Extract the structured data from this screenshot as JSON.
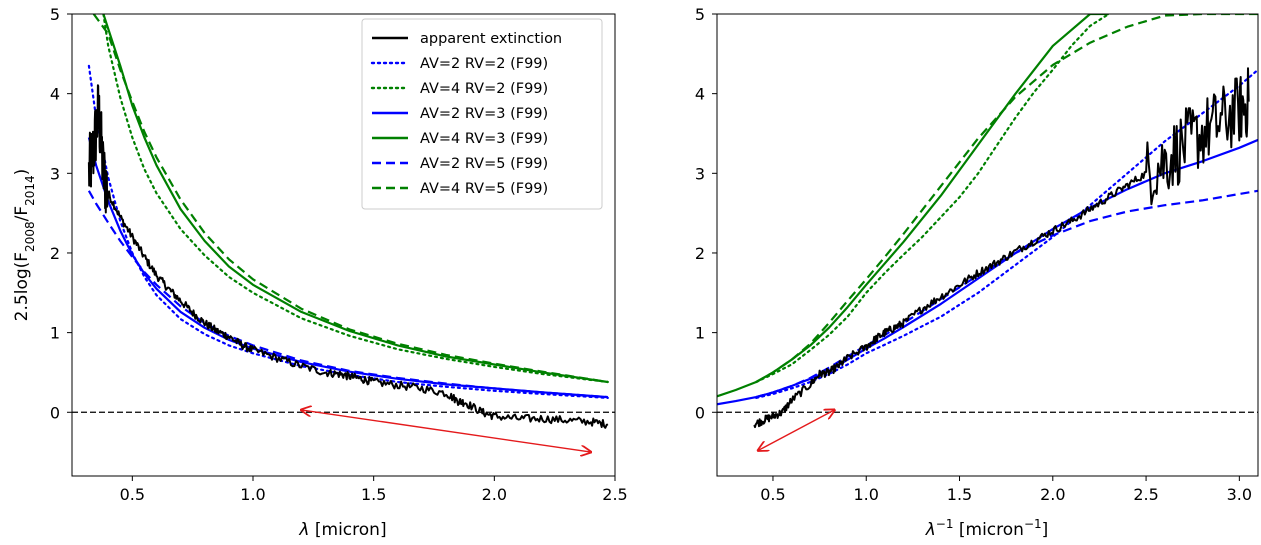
{
  "chart_data": [
    {
      "type": "line",
      "xlabel": "λ [micron]",
      "ylabel": "2.5log(F2008/F2014)",
      "ylabel_parts": {
        "pre": "2.5log(F",
        "sub1": "2008",
        "mid": "/F",
        "sub2": "2014",
        "post": ")"
      },
      "xlim": [
        0.25,
        2.5
      ],
      "ylim": [
        -0.8,
        5.0
      ],
      "xticks": [
        "0.5",
        "1.0",
        "1.5",
        "2.0",
        "2.5"
      ],
      "yticks": [
        "0",
        "1",
        "2",
        "3",
        "4",
        "5"
      ],
      "zero_line": 0,
      "arrow": {
        "from": [
          2.4,
          -0.5
        ],
        "to": [
          1.2,
          0.03
        ],
        "color": "#e41a1c"
      },
      "legend": {
        "position": "top-right",
        "entries": [
          {
            "label": "apparent extinction",
            "color": "#000000",
            "style": "solid"
          },
          {
            "label": "AV=2 RV=2 (F99)",
            "color": "#0000ff",
            "style": "dotted"
          },
          {
            "label": "AV=4 RV=2 (F99)",
            "color": "#008000",
            "style": "dotted"
          },
          {
            "label": "AV=2 RV=3 (F99)",
            "color": "#0000ff",
            "style": "solid"
          },
          {
            "label": "AV=4 RV=3 (F99)",
            "color": "#008000",
            "style": "solid"
          },
          {
            "label": "AV=2 RV=5 (F99)",
            "color": "#0000ff",
            "style": "dashed"
          },
          {
            "label": "AV=4 RV=5 (F99)",
            "color": "#008000",
            "style": "dashed"
          }
        ]
      },
      "series": [
        {
          "label": "AV=2 RV=2 (F99)",
          "color": "#0000ff",
          "style": "dotted",
          "x": [
            0.32,
            0.35,
            0.4,
            0.45,
            0.5,
            0.55,
            0.6,
            0.7,
            0.8,
            0.9,
            1.0,
            1.2,
            1.4,
            1.6,
            1.8,
            2.0,
            2.2,
            2.47
          ],
          "y": [
            4.35,
            3.7,
            2.95,
            2.4,
            2.0,
            1.7,
            1.47,
            1.17,
            0.98,
            0.84,
            0.74,
            0.58,
            0.47,
            0.38,
            0.32,
            0.27,
            0.23,
            0.18
          ]
        },
        {
          "label": "AV=4 RV=2 (F99)",
          "color": "#008000",
          "style": "dotted",
          "x": [
            0.38,
            0.4,
            0.45,
            0.5,
            0.55,
            0.6,
            0.7,
            0.8,
            0.9,
            1.0,
            1.2,
            1.4,
            1.6,
            1.8,
            2.0,
            2.2,
            2.47
          ],
          "y": [
            5.0,
            4.6,
            3.95,
            3.45,
            3.05,
            2.75,
            2.3,
            1.97,
            1.7,
            1.5,
            1.18,
            0.96,
            0.79,
            0.67,
            0.57,
            0.48,
            0.38
          ]
        },
        {
          "label": "AV=2 RV=3 (F99)",
          "color": "#0000ff",
          "style": "solid",
          "x": [
            0.32,
            0.35,
            0.4,
            0.45,
            0.5,
            0.55,
            0.6,
            0.7,
            0.8,
            0.9,
            1.0,
            1.2,
            1.4,
            1.6,
            1.8,
            2.0,
            2.2,
            2.47
          ],
          "y": [
            3.45,
            3.1,
            2.65,
            2.28,
            1.98,
            1.74,
            1.55,
            1.26,
            1.06,
            0.91,
            0.8,
            0.63,
            0.51,
            0.42,
            0.35,
            0.3,
            0.25,
            0.19
          ]
        },
        {
          "label": "AV=4 RV=3 (F99)",
          "color": "#008000",
          "style": "solid",
          "x": [
            0.38,
            0.45,
            0.5,
            0.55,
            0.6,
            0.7,
            0.8,
            0.9,
            1.0,
            1.2,
            1.4,
            1.6,
            1.8,
            2.0,
            2.2,
            2.47
          ],
          "y": [
            5.0,
            4.35,
            3.85,
            3.45,
            3.1,
            2.55,
            2.15,
            1.83,
            1.6,
            1.26,
            1.02,
            0.84,
            0.7,
            0.6,
            0.5,
            0.38
          ]
        },
        {
          "label": "AV=2 RV=5 (F99)",
          "color": "#0000ff",
          "style": "dashed",
          "x": [
            0.32,
            0.35,
            0.4,
            0.45,
            0.5,
            0.55,
            0.6,
            0.7,
            0.8,
            0.9,
            1.0,
            1.2,
            1.4,
            1.6,
            1.8,
            2.0,
            2.2,
            2.47
          ],
          "y": [
            2.78,
            2.62,
            2.38,
            2.15,
            1.95,
            1.76,
            1.6,
            1.33,
            1.12,
            0.96,
            0.84,
            0.65,
            0.52,
            0.43,
            0.36,
            0.3,
            0.25,
            0.19
          ]
        },
        {
          "label": "AV=4 RV=5 (F99)",
          "color": "#008000",
          "style": "dashed",
          "x": [
            0.34,
            0.4,
            0.45,
            0.5,
            0.55,
            0.6,
            0.7,
            0.8,
            0.9,
            1.0,
            1.2,
            1.4,
            1.6,
            1.8,
            2.0,
            2.2,
            2.47
          ],
          "y": [
            5.0,
            4.75,
            4.3,
            3.9,
            3.52,
            3.2,
            2.67,
            2.25,
            1.92,
            1.67,
            1.3,
            1.04,
            0.86,
            0.72,
            0.61,
            0.51,
            0.38
          ]
        },
        {
          "label": "apparent extinction",
          "color": "#000000",
          "style": "solid",
          "noisy": true,
          "x": [
            0.32,
            0.34,
            0.36,
            0.38,
            0.4,
            0.45,
            0.5,
            0.55,
            0.6,
            0.65,
            0.7,
            0.75,
            0.8,
            0.85,
            0.9,
            0.95,
            1.0,
            1.1,
            1.2,
            1.3,
            1.36,
            1.4,
            1.45,
            1.5,
            1.6,
            1.7,
            1.8,
            1.85,
            1.88,
            1.95,
            2.0,
            2.1,
            2.2,
            2.3,
            2.4,
            2.47
          ],
          "y": [
            3.0,
            3.3,
            3.8,
            3.0,
            2.75,
            2.45,
            2.2,
            1.95,
            1.72,
            1.55,
            1.4,
            1.25,
            1.12,
            1.02,
            0.95,
            0.85,
            0.78,
            0.68,
            0.58,
            0.5,
            0.48,
            0.45,
            0.42,
            0.38,
            0.34,
            0.3,
            0.24,
            0.14,
            0.12,
            0.0,
            -0.05,
            -0.08,
            -0.08,
            -0.1,
            -0.12,
            -0.15
          ]
        }
      ]
    },
    {
      "type": "line",
      "xlabel": "λ⁻¹ [micron⁻¹]",
      "xlim": [
        0.2,
        3.1
      ],
      "ylim": [
        -0.8,
        5.0
      ],
      "xticks": [
        "0.5",
        "1.0",
        "1.5",
        "2.0",
        "2.5",
        "3.0"
      ],
      "yticks": [
        "0",
        "1",
        "2",
        "3",
        "4",
        "5"
      ],
      "zero_line": 0,
      "arrow": {
        "from": [
          0.42,
          -0.48
        ],
        "to": [
          0.83,
          0.03
        ],
        "color": "#e41a1c"
      },
      "series": [
        {
          "label": "AV=2 RV=2 (F99)",
          "color": "#0000ff",
          "style": "dotted",
          "x": [
            0.41,
            0.5,
            0.6,
            0.7,
            0.8,
            0.9,
            1.0,
            1.1,
            1.2,
            1.3,
            1.4,
            1.5,
            1.6,
            1.8,
            2.0,
            2.2,
            2.4,
            2.6,
            2.8,
            3.0,
            3.1
          ],
          "y": [
            0.18,
            0.23,
            0.3,
            0.38,
            0.48,
            0.6,
            0.74,
            0.85,
            0.96,
            1.08,
            1.2,
            1.35,
            1.5,
            1.85,
            2.2,
            2.6,
            3.0,
            3.4,
            3.75,
            4.1,
            4.3
          ]
        },
        {
          "label": "AV=4 RV=2 (F99)",
          "color": "#008000",
          "style": "dotted",
          "x": [
            0.41,
            0.5,
            0.6,
            0.7,
            0.8,
            0.9,
            1.0,
            1.1,
            1.2,
            1.3,
            1.4,
            1.5,
            1.6,
            1.7,
            1.8,
            1.9,
            2.0,
            2.1,
            2.2,
            2.3
          ],
          "y": [
            0.38,
            0.48,
            0.6,
            0.78,
            0.97,
            1.2,
            1.5,
            1.75,
            1.98,
            2.2,
            2.45,
            2.7,
            3.0,
            3.35,
            3.7,
            4.02,
            4.3,
            4.6,
            4.85,
            5.0
          ]
        },
        {
          "label": "AV=2 RV=3 (F99)",
          "color": "#0000ff",
          "style": "solid",
          "x": [
            0.2,
            0.3,
            0.41,
            0.5,
            0.6,
            0.7,
            0.8,
            0.9,
            1.0,
            1.1,
            1.2,
            1.4,
            1.6,
            1.8,
            2.0,
            2.2,
            2.4,
            2.6,
            2.8,
            3.0,
            3.1
          ],
          "y": [
            0.1,
            0.14,
            0.19,
            0.25,
            0.33,
            0.42,
            0.52,
            0.66,
            0.8,
            0.93,
            1.07,
            1.36,
            1.68,
            2.0,
            2.3,
            2.57,
            2.8,
            3.0,
            3.15,
            3.32,
            3.42
          ]
        },
        {
          "label": "AV=4 RV=3 (F99)",
          "color": "#008000",
          "style": "solid",
          "x": [
            0.2,
            0.3,
            0.41,
            0.5,
            0.6,
            0.7,
            0.8,
            0.9,
            1.0,
            1.1,
            1.2,
            1.4,
            1.6,
            1.8,
            2.0,
            2.2,
            2.3
          ],
          "y": [
            0.2,
            0.28,
            0.38,
            0.5,
            0.66,
            0.84,
            1.06,
            1.32,
            1.6,
            1.87,
            2.14,
            2.72,
            3.36,
            4.0,
            4.6,
            5.0,
            5.0
          ]
        },
        {
          "label": "AV=2 RV=5 (F99)",
          "color": "#0000ff",
          "style": "dashed",
          "x": [
            0.41,
            0.5,
            0.6,
            0.7,
            0.8,
            0.9,
            1.0,
            1.1,
            1.2,
            1.4,
            1.6,
            1.8,
            2.0,
            2.2,
            2.4,
            2.6,
            2.8,
            3.0,
            3.1
          ],
          "y": [
            0.19,
            0.25,
            0.33,
            0.43,
            0.56,
            0.7,
            0.84,
            0.97,
            1.12,
            1.42,
            1.72,
            2.0,
            2.22,
            2.4,
            2.52,
            2.6,
            2.66,
            2.74,
            2.78
          ]
        },
        {
          "label": "AV=4 RV=5 (F99)",
          "color": "#008000",
          "style": "dashed",
          "x": [
            0.41,
            0.5,
            0.6,
            0.7,
            0.8,
            0.9,
            1.0,
            1.1,
            1.2,
            1.4,
            1.6,
            1.8,
            2.0,
            2.2,
            2.4,
            2.6,
            2.8,
            3.0,
            3.1
          ],
          "y": [
            0.38,
            0.5,
            0.66,
            0.86,
            1.12,
            1.4,
            1.67,
            1.95,
            2.24,
            2.84,
            3.44,
            3.96,
            4.36,
            4.64,
            4.84,
            4.98,
            5.0,
            5.0,
            5.0
          ]
        },
        {
          "label": "apparent extinction",
          "color": "#000000",
          "style": "solid",
          "noisy": true,
          "x": [
            0.4,
            0.45,
            0.5,
            0.55,
            0.6,
            0.7,
            0.75,
            0.8,
            0.85,
            0.9,
            1.0,
            1.05,
            1.1,
            1.15,
            1.2,
            1.3,
            1.4,
            1.5,
            1.6,
            1.7,
            1.8,
            1.9,
            2.0,
            2.1,
            2.2,
            2.3,
            2.4,
            2.5,
            2.6,
            2.7,
            2.8,
            2.9,
            3.0,
            3.05
          ],
          "y": [
            -0.15,
            -0.1,
            -0.05,
            0.0,
            0.15,
            0.35,
            0.48,
            0.5,
            0.58,
            0.68,
            0.82,
            0.92,
            1.0,
            1.06,
            1.12,
            1.3,
            1.45,
            1.6,
            1.75,
            1.88,
            2.02,
            2.15,
            2.28,
            2.4,
            2.55,
            2.7,
            2.85,
            3.0,
            3.15,
            3.35,
            3.5,
            3.65,
            3.8,
            3.9
          ]
        }
      ]
    }
  ]
}
